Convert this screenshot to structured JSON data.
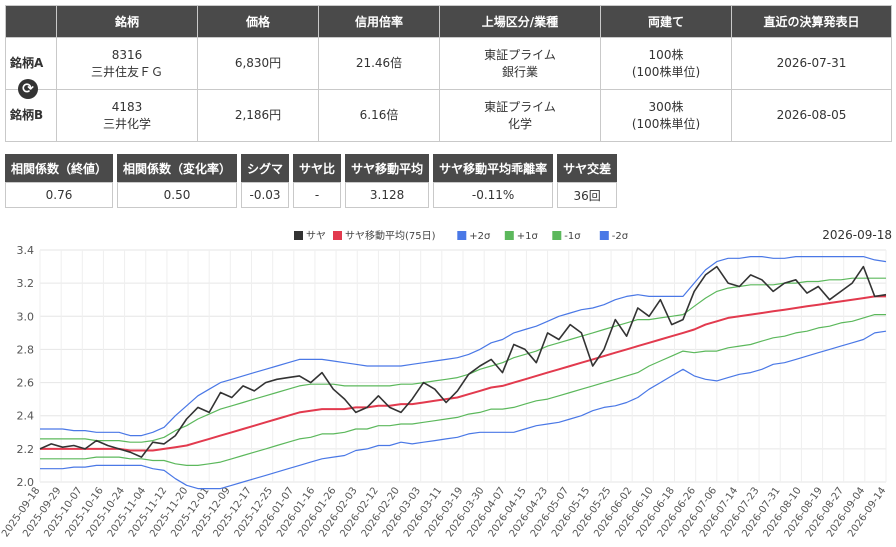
{
  "table": {
    "headers": [
      "",
      "銘柄",
      "価格",
      "信用倍率",
      "上場区分/業種",
      "両建て",
      "直近の決算発表日"
    ],
    "rows": [
      {
        "label": "銘柄A",
        "code": "8316",
        "name": "三井住友ＦＧ",
        "price": "6,830円",
        "margin_ratio": "21.46倍",
        "market": "東証プライム",
        "sector": "銀行業",
        "shares": "100株",
        "unit": "(100株単位)",
        "earnings_date": "2026-07-31"
      },
      {
        "label": "銘柄B",
        "code": "4183",
        "name": "三井化学",
        "price": "2,186円",
        "margin_ratio": "6.16倍",
        "market": "東証プライム",
        "sector": "化学",
        "shares": "300株",
        "unit": "(100株単位)",
        "earnings_date": "2026-08-05"
      }
    ],
    "swap_icon": "refresh-icon"
  },
  "stats": [
    {
      "label": "相関係数（終値）",
      "value": "0.76"
    },
    {
      "label": "相関係数（変化率）",
      "value": "0.50"
    },
    {
      "label": "シグマ",
      "value": "-0.03"
    },
    {
      "label": "サヤ比",
      "value": "-"
    },
    {
      "label": "サヤ移動平均",
      "value": "3.128"
    },
    {
      "label": "サヤ移動平均乖離率",
      "value": "-0.11%"
    },
    {
      "label": "サヤ交差",
      "value": "36回"
    }
  ],
  "chart_data": {
    "type": "line",
    "date_label": "2026-09-18",
    "ylim": [
      2.0,
      3.4
    ],
    "yticks": [
      "2.0",
      "2.2",
      "2.4",
      "2.6",
      "2.8",
      "3.0",
      "3.2",
      "3.4"
    ],
    "grid": true,
    "legend_position": "top",
    "xlabels": [
      "2025-09-18",
      "2025-09-29",
      "2025-10-07",
      "2025-10-16",
      "2025-10-24",
      "2025-11-04",
      "2025-11-12",
      "2025-11-20",
      "2025-12-01",
      "2025-12-09",
      "2025-12-17",
      "2025-12-25",
      "2026-01-07",
      "2026-01-16",
      "2026-01-26",
      "2026-02-03",
      "2026-02-12",
      "2026-02-20",
      "2026-03-03",
      "2026-03-11",
      "2026-03-19",
      "2026-03-30",
      "2026-04-07",
      "2026-04-15",
      "2026-04-23",
      "2026-05-07",
      "2026-05-15",
      "2026-05-25",
      "2026-06-02",
      "2026-06-10",
      "2026-06-18",
      "2026-06-26",
      "2026-07-06",
      "2026-07-14",
      "2026-07-23",
      "2026-07-31",
      "2026-08-10",
      "2026-08-19",
      "2026-08-27",
      "2026-09-04",
      "2026-09-14"
    ],
    "series": [
      {
        "name": "サヤ",
        "color": "#333333",
        "values": [
          2.2,
          2.23,
          2.21,
          2.22,
          2.2,
          2.25,
          2.22,
          2.2,
          2.18,
          2.15,
          2.24,
          2.23,
          2.28,
          2.38,
          2.45,
          2.42,
          2.54,
          2.51,
          2.58,
          2.55,
          2.6,
          2.62,
          2.63,
          2.64,
          2.6,
          2.66,
          2.56,
          2.5,
          2.42,
          2.45,
          2.52,
          2.45,
          2.42,
          2.5,
          2.6,
          2.56,
          2.48,
          2.55,
          2.65,
          2.7,
          2.74,
          2.66,
          2.83,
          2.8,
          2.72,
          2.9,
          2.86,
          2.95,
          2.9,
          2.7,
          2.8,
          2.98,
          2.88,
          3.05,
          3.0,
          3.1,
          2.95,
          2.98,
          3.15,
          3.25,
          3.3,
          3.2,
          3.18,
          3.25,
          3.22,
          3.15,
          3.2,
          3.22,
          3.14,
          3.18,
          3.1,
          3.15,
          3.2,
          3.3,
          3.12,
          3.13
        ]
      },
      {
        "name": "サヤ移動平均(75日)",
        "color": "#e23a4e",
        "values": [
          2.2,
          2.2,
          2.2,
          2.2,
          2.2,
          2.2,
          2.2,
          2.2,
          2.19,
          2.19,
          2.19,
          2.2,
          2.21,
          2.22,
          2.24,
          2.26,
          2.28,
          2.3,
          2.32,
          2.34,
          2.36,
          2.38,
          2.4,
          2.42,
          2.43,
          2.44,
          2.44,
          2.44,
          2.45,
          2.45,
          2.46,
          2.46,
          2.47,
          2.47,
          2.48,
          2.49,
          2.5,
          2.51,
          2.53,
          2.55,
          2.57,
          2.58,
          2.6,
          2.62,
          2.64,
          2.66,
          2.68,
          2.7,
          2.72,
          2.74,
          2.76,
          2.78,
          2.8,
          2.82,
          2.84,
          2.86,
          2.88,
          2.9,
          2.92,
          2.95,
          2.97,
          2.99,
          3.0,
          3.01,
          3.02,
          3.03,
          3.04,
          3.05,
          3.06,
          3.07,
          3.08,
          3.09,
          3.1,
          3.11,
          3.12,
          3.12
        ]
      },
      {
        "name": "+2σ",
        "color": "#4a78e6",
        "values": [
          2.32,
          2.32,
          2.32,
          2.31,
          2.31,
          2.3,
          2.3,
          2.3,
          2.28,
          2.28,
          2.3,
          2.33,
          2.4,
          2.46,
          2.52,
          2.56,
          2.6,
          2.62,
          2.64,
          2.66,
          2.68,
          2.7,
          2.72,
          2.74,
          2.74,
          2.74,
          2.73,
          2.72,
          2.71,
          2.7,
          2.7,
          2.7,
          2.7,
          2.71,
          2.72,
          2.73,
          2.74,
          2.75,
          2.77,
          2.8,
          2.84,
          2.86,
          2.9,
          2.92,
          2.94,
          2.97,
          3.0,
          3.02,
          3.04,
          3.05,
          3.07,
          3.1,
          3.12,
          3.13,
          3.12,
          3.12,
          3.12,
          3.12,
          3.2,
          3.28,
          3.33,
          3.35,
          3.35,
          3.36,
          3.36,
          3.35,
          3.35,
          3.36,
          3.36,
          3.36,
          3.36,
          3.36,
          3.36,
          3.36,
          3.34,
          3.33
        ]
      },
      {
        "name": "+1σ",
        "color": "#5cb85c",
        "values": [
          2.26,
          2.26,
          2.26,
          2.26,
          2.26,
          2.25,
          2.25,
          2.25,
          2.24,
          2.24,
          2.25,
          2.27,
          2.31,
          2.34,
          2.38,
          2.41,
          2.44,
          2.46,
          2.48,
          2.5,
          2.52,
          2.54,
          2.56,
          2.58,
          2.59,
          2.59,
          2.59,
          2.58,
          2.58,
          2.58,
          2.58,
          2.58,
          2.59,
          2.59,
          2.6,
          2.61,
          2.62,
          2.63,
          2.65,
          2.68,
          2.7,
          2.72,
          2.75,
          2.77,
          2.79,
          2.82,
          2.84,
          2.86,
          2.88,
          2.9,
          2.92,
          2.94,
          2.96,
          2.98,
          2.98,
          2.99,
          3.0,
          3.01,
          3.06,
          3.11,
          3.15,
          3.17,
          3.18,
          3.19,
          3.19,
          3.19,
          3.2,
          3.2,
          3.21,
          3.21,
          3.22,
          3.22,
          3.23,
          3.23,
          3.23,
          3.23
        ]
      },
      {
        "name": "-1σ",
        "color": "#5cb85c",
        "values": [
          2.14,
          2.14,
          2.14,
          2.14,
          2.14,
          2.15,
          2.15,
          2.15,
          2.14,
          2.14,
          2.13,
          2.13,
          2.11,
          2.1,
          2.1,
          2.11,
          2.12,
          2.14,
          2.16,
          2.18,
          2.2,
          2.22,
          2.24,
          2.26,
          2.27,
          2.29,
          2.29,
          2.3,
          2.32,
          2.32,
          2.34,
          2.34,
          2.35,
          2.35,
          2.36,
          2.37,
          2.38,
          2.39,
          2.41,
          2.42,
          2.44,
          2.44,
          2.45,
          2.47,
          2.49,
          2.5,
          2.52,
          2.54,
          2.56,
          2.58,
          2.6,
          2.62,
          2.64,
          2.66,
          2.7,
          2.73,
          2.76,
          2.79,
          2.78,
          2.79,
          2.79,
          2.81,
          2.82,
          2.83,
          2.85,
          2.87,
          2.88,
          2.9,
          2.91,
          2.93,
          2.94,
          2.96,
          2.97,
          2.99,
          3.01,
          3.01
        ]
      },
      {
        "name": "-2σ",
        "color": "#4a78e6",
        "values": [
          2.08,
          2.08,
          2.08,
          2.09,
          2.09,
          2.1,
          2.1,
          2.1,
          2.1,
          2.1,
          2.08,
          2.07,
          2.02,
          1.98,
          1.96,
          1.96,
          1.96,
          1.98,
          2.0,
          2.02,
          2.04,
          2.06,
          2.08,
          2.1,
          2.12,
          2.14,
          2.15,
          2.16,
          2.19,
          2.2,
          2.22,
          2.22,
          2.24,
          2.23,
          2.24,
          2.25,
          2.26,
          2.27,
          2.29,
          2.3,
          2.3,
          2.3,
          2.3,
          2.32,
          2.34,
          2.35,
          2.36,
          2.38,
          2.4,
          2.43,
          2.45,
          2.46,
          2.48,
          2.51,
          2.56,
          2.6,
          2.64,
          2.68,
          2.64,
          2.62,
          2.61,
          2.63,
          2.65,
          2.66,
          2.68,
          2.71,
          2.72,
          2.74,
          2.76,
          2.78,
          2.8,
          2.82,
          2.84,
          2.86,
          2.9,
          2.91
        ]
      }
    ]
  }
}
